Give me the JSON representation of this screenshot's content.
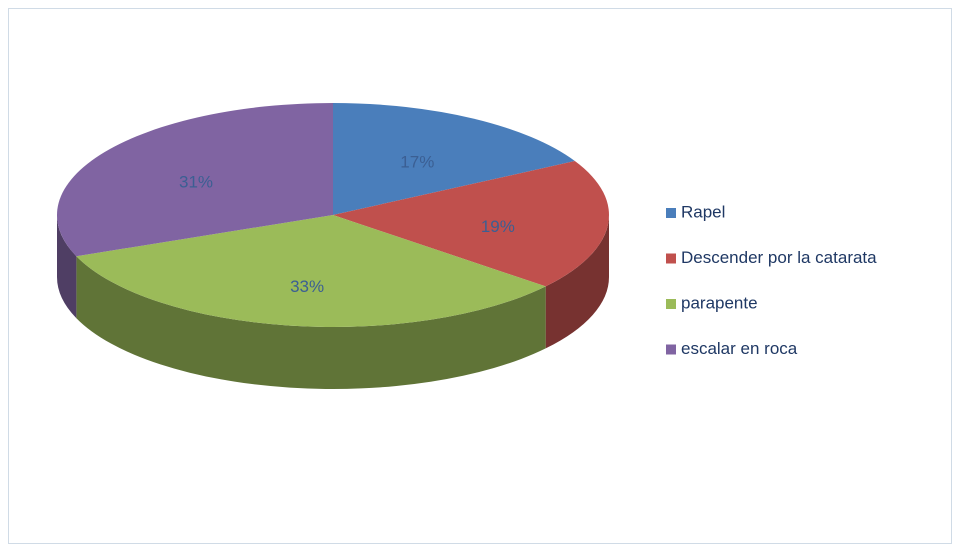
{
  "chart_data": {
    "type": "pie",
    "categories": [
      "Rapel",
      "Descender por la catarata",
      "parapente",
      "escalar en roca"
    ],
    "values": [
      17,
      19,
      33,
      31
    ],
    "value_labels": [
      "17%",
      "19%",
      "33%",
      "31%"
    ],
    "colors": [
      "#4a7ebb",
      "#c0504d",
      "#9bbb59",
      "#8064a2"
    ],
    "legend": "right"
  }
}
